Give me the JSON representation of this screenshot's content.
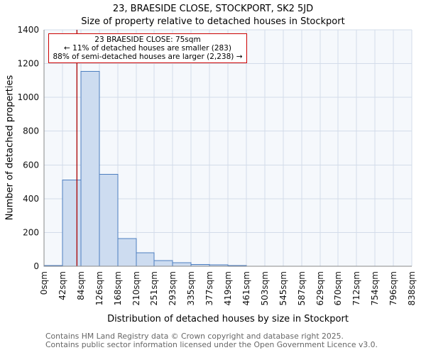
{
  "chart_data": {
    "type": "bar",
    "title": "23, BRAESIDE CLOSE, STOCKPORT, SK2 5JD",
    "subtitle": "Size of property relative to detached houses in Stockport",
    "xlabel": "Distribution of detached houses by size in Stockport",
    "ylabel": "Number of detached properties",
    "bin_edges": [
      0,
      42,
      84,
      126,
      168,
      210,
      251,
      293,
      335,
      377,
      419,
      461,
      503,
      545,
      587,
      629,
      670,
      712,
      754,
      796,
      838
    ],
    "tick_labels": [
      "0sqm",
      "42sqm",
      "84sqm",
      "126sqm",
      "168sqm",
      "210sqm",
      "251sqm",
      "293sqm",
      "335sqm",
      "377sqm",
      "419sqm",
      "461sqm",
      "503sqm",
      "545sqm",
      "587sqm",
      "629sqm",
      "670sqm",
      "712sqm",
      "754sqm",
      "796sqm",
      "838sqm"
    ],
    "values": [
      5,
      510,
      1155,
      545,
      165,
      80,
      33,
      20,
      10,
      8,
      5,
      0,
      0,
      0,
      0,
      0,
      0,
      0,
      0,
      0
    ],
    "ylim": [
      0,
      1400
    ],
    "yticks": [
      0,
      200,
      400,
      600,
      800,
      1000,
      1200,
      1400
    ],
    "grid": true,
    "marker": {
      "value_sqm": 75,
      "color": "#aa0000"
    },
    "annotation": {
      "line1": "23 BRAESIDE CLOSE: 75sqm",
      "line2": "← 11% of detached houses are smaller (283)",
      "line3": "88% of semi-detached houses are larger (2,238) →"
    },
    "colors": {
      "bar_fill": "#cddcf0",
      "bar_stroke": "#4d7ebf",
      "grid": "#d3dcea",
      "plot_bg": "#f5f8fc",
      "axis": "#888888"
    }
  },
  "footer": {
    "line1": "Contains HM Land Registry data © Crown copyright and database right 2025.",
    "line2": "Contains public sector information licensed under the Open Government Licence v3.0."
  }
}
